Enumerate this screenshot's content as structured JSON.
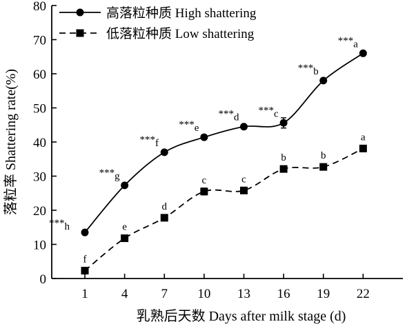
{
  "chart_data": {
    "type": "line",
    "xlabel": "乳熟后天数 Days after milk stage (d)",
    "ylabel": "落粒率 Shattering rate(%)",
    "x": [
      1,
      4,
      7,
      10,
      13,
      16,
      19,
      22
    ],
    "xticks": [
      1,
      4,
      7,
      10,
      13,
      16,
      19,
      22
    ],
    "xlim": [
      -1.5,
      25
    ],
    "ylim": [
      0,
      80
    ],
    "yticks": [
      0,
      10,
      20,
      30,
      40,
      50,
      60,
      70,
      80
    ],
    "grid": false,
    "legend_position": "top-left",
    "series": [
      {
        "name": "高落粒种质 High shattering",
        "marker": "circle",
        "line_style": "solid",
        "color": "#000000",
        "values": [
          13.5,
          27.3,
          37,
          41.4,
          44.5,
          45.6,
          58,
          66
        ],
        "errors": [
          0.5,
          0.6,
          0.5,
          0.5,
          0.6,
          1.5,
          0.5,
          0.5
        ],
        "annotations": [
          {
            "stars": "***",
            "letter": "h"
          },
          {
            "stars": "***",
            "letter": "g"
          },
          {
            "stars": "***",
            "letter": "f"
          },
          {
            "stars": "***",
            "letter": "e"
          },
          {
            "stars": "***",
            "letter": "d"
          },
          {
            "stars": "***",
            "letter": "c"
          },
          {
            "stars": "***",
            "letter": "b"
          },
          {
            "stars": "***",
            "letter": "a"
          }
        ]
      },
      {
        "name": "低落粒种质 Low shattering",
        "marker": "square",
        "line_style": "dashed",
        "color": "#000000",
        "values": [
          2.3,
          11.8,
          17.8,
          25.5,
          25.8,
          32.1,
          32.7,
          38.1
        ],
        "errors": [
          0.5,
          0.5,
          0.5,
          1.0,
          0.5,
          0.5,
          0.5,
          0.5
        ],
        "annotations": [
          {
            "letter": "f"
          },
          {
            "letter": "e"
          },
          {
            "letter": "d"
          },
          {
            "letter": "c"
          },
          {
            "letter": "c"
          },
          {
            "letter": "b"
          },
          {
            "letter": "b"
          },
          {
            "letter": "a"
          }
        ]
      }
    ]
  }
}
